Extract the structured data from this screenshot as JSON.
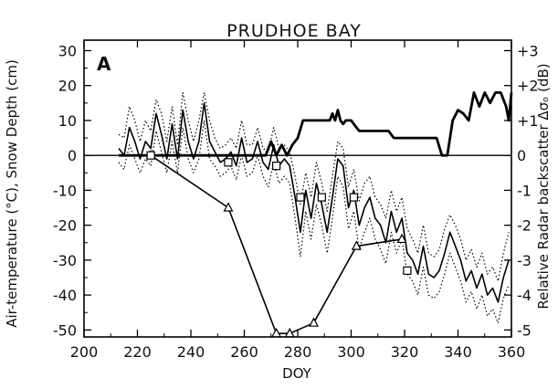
{
  "chart_data": {
    "type": "line",
    "title": "PRUDHOE BAY",
    "panel_label": "A",
    "xlabel": "DOY",
    "ylabel": "Air-temperature (°C), Snow Depth (cm)",
    "y2label": "Relative Radar backscatter Δσₒ (dB)",
    "xlim": [
      200,
      360
    ],
    "ylim": [
      -52,
      33
    ],
    "y2lim": [
      -5.2,
      3.3
    ],
    "xticks": [
      "200",
      "220",
      "240",
      "260",
      "280",
      "300",
      "320",
      "340",
      "360"
    ],
    "yticks": [
      "30",
      "20",
      "10",
      "0",
      "-10",
      "-20",
      "-30",
      "-40",
      "-50"
    ],
    "y2ticks": [
      "+3",
      "+2",
      "+1",
      "0",
      "-1",
      "-2",
      "-3",
      "-4",
      "-5"
    ],
    "grid": false,
    "series": [
      {
        "style": "air-temperature-mean",
        "color": "#000000",
        "x": [
          213,
          215,
          217,
          219,
          221,
          223,
          225,
          227,
          229,
          231,
          233,
          235,
          237,
          239,
          241,
          243,
          245,
          247,
          249,
          251,
          253,
          255,
          257,
          259,
          261,
          263,
          265,
          267,
          269,
          271,
          273,
          275,
          277,
          279,
          281,
          283,
          285,
          287,
          289,
          291,
          293,
          295,
          297,
          299,
          301,
          303,
          305,
          307,
          309,
          311,
          313,
          315,
          317,
          319,
          321,
          323,
          325,
          327,
          329,
          331,
          333,
          335,
          337,
          339,
          341,
          343,
          345,
          347,
          349,
          351,
          353,
          355,
          357,
          359
        ],
        "y": [
          2,
          0,
          8,
          4,
          -1,
          4,
          2,
          12,
          6,
          -1,
          9,
          -1,
          13,
          4,
          -1,
          4,
          15,
          4,
          1,
          -2,
          -1,
          1,
          -3,
          5,
          -2,
          -1,
          4,
          -2,
          -4,
          3,
          -3,
          -1,
          -3,
          -12,
          -22,
          -10,
          -18,
          -8,
          -14,
          -22,
          -12,
          -1,
          -3,
          -15,
          -10,
          -20,
          -15,
          -12,
          -18,
          -20,
          -25,
          -16,
          -22,
          -18,
          -28,
          -30,
          -34,
          -26,
          -34,
          -35,
          -33,
          -28,
          -22,
          -26,
          -30,
          -36,
          -33,
          -38,
          -34,
          -40,
          -38,
          -42,
          -35,
          -30
        ]
      },
      {
        "style": "air-temperature-max",
        "color": "#000000",
        "dotted": true,
        "x": [
          213,
          215,
          217,
          219,
          221,
          223,
          225,
          227,
          229,
          231,
          233,
          235,
          237,
          239,
          241,
          243,
          245,
          247,
          249,
          251,
          253,
          255,
          257,
          259,
          261,
          263,
          265,
          267,
          269,
          271,
          273,
          275,
          277,
          279,
          281,
          283,
          285,
          287,
          289,
          291,
          293,
          295,
          297,
          299,
          301,
          303,
          305,
          307,
          309,
          311,
          313,
          315,
          317,
          319,
          321,
          323,
          325,
          327,
          329,
          331,
          333,
          335,
          337,
          339,
          341,
          343,
          345,
          347,
          349,
          351,
          353,
          355,
          357,
          359
        ],
        "y": [
          6,
          5,
          14,
          10,
          4,
          10,
          7,
          16,
          12,
          4,
          14,
          3,
          18,
          10,
          4,
          10,
          18,
          10,
          5,
          2,
          3,
          5,
          2,
          10,
          3,
          3,
          8,
          2,
          1,
          8,
          2,
          3,
          1,
          -6,
          -14,
          -5,
          -12,
          -2,
          -8,
          -16,
          -6,
          4,
          2,
          -9,
          -4,
          -13,
          -8,
          -6,
          -12,
          -14,
          -18,
          -10,
          -16,
          -12,
          -21,
          -24,
          -28,
          -20,
          -28,
          -29,
          -27,
          -21,
          -17,
          -20,
          -24,
          -30,
          -27,
          -32,
          -28,
          -34,
          -32,
          -36,
          -28,
          -22
        ]
      },
      {
        "style": "air-temperature-min",
        "color": "#000000",
        "dotted": true,
        "x": [
          213,
          215,
          217,
          219,
          221,
          223,
          225,
          227,
          229,
          231,
          233,
          235,
          237,
          239,
          241,
          243,
          245,
          247,
          249,
          251,
          253,
          255,
          257,
          259,
          261,
          263,
          265,
          267,
          269,
          271,
          273,
          275,
          277,
          279,
          281,
          283,
          285,
          287,
          289,
          291,
          293,
          295,
          297,
          299,
          301,
          303,
          305,
          307,
          309,
          311,
          313,
          315,
          317,
          319,
          321,
          323,
          325,
          327,
          329,
          331,
          333,
          335,
          337,
          339,
          341,
          343,
          345,
          347,
          349,
          351,
          353,
          355,
          357,
          359
        ],
        "y": [
          -2,
          -4,
          3,
          -1,
          -5,
          -1,
          -3,
          7,
          1,
          -5,
          4,
          -5,
          8,
          -1,
          -5,
          -1,
          10,
          -1,
          -3,
          -6,
          -5,
          -3,
          -7,
          0,
          -6,
          -5,
          0,
          -6,
          -9,
          -2,
          -8,
          -6,
          -8,
          -18,
          -29,
          -16,
          -24,
          -14,
          -20,
          -28,
          -18,
          -6,
          -9,
          -21,
          -16,
          -27,
          -22,
          -18,
          -24,
          -27,
          -31,
          -22,
          -28,
          -24,
          -34,
          -36,
          -40,
          -32,
          -40,
          -41,
          -39,
          -34,
          -28,
          -32,
          -36,
          -42,
          -39,
          -44,
          -40,
          -46,
          -44,
          -48,
          -41,
          -37
        ]
      },
      {
        "style": "snow-depth",
        "color": "#000000",
        "x": [
          213,
          268,
          270,
          272,
          274,
          276,
          278,
          280,
          282,
          284,
          286,
          288,
          290,
          292,
          293,
          294,
          295,
          296,
          297,
          298,
          300,
          302,
          303,
          304,
          306,
          308,
          310,
          312,
          314,
          316,
          318,
          320,
          322,
          324,
          326,
          328,
          330,
          332,
          334,
          336,
          338,
          340,
          342,
          344,
          346,
          348,
          350,
          352,
          354,
          356,
          358,
          359,
          360
        ],
        "y": [
          0,
          0,
          4,
          0,
          3,
          0,
          3,
          5,
          10,
          10,
          10,
          10,
          10,
          10,
          12,
          10,
          13,
          10,
          9,
          10,
          10,
          8,
          7,
          7,
          7,
          7,
          7,
          7,
          7,
          5,
          5,
          5,
          5,
          5,
          5,
          5,
          5,
          5,
          0,
          0,
          10,
          13,
          12,
          10,
          18,
          14,
          18,
          15,
          18,
          18,
          14,
          10,
          18
        ]
      },
      {
        "style": "radar-backscatter",
        "color": "#000000",
        "marker": "triangle",
        "x": [
          225,
          254,
          272,
          277,
          286,
          302,
          319
        ],
        "y": [
          0,
          -1.5,
          -5.1,
          -5.1,
          -4.8,
          -2.6,
          -2.4
        ]
      },
      {
        "style": "square-markers",
        "color": "#000000",
        "marker": "square",
        "x": [
          225,
          254,
          272,
          281,
          289,
          301,
          321
        ],
        "y": [
          0,
          -2,
          -3,
          -12,
          -12,
          -12,
          -33
        ]
      }
    ]
  }
}
